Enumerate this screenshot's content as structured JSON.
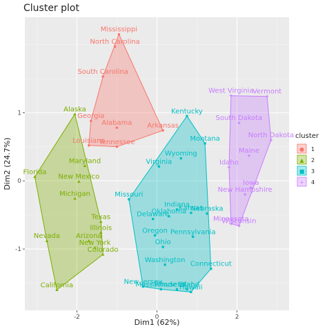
{
  "chart_data": {
    "type": "scatter",
    "title": "Cluster plot",
    "xlabel": "Dim1 (62%)",
    "ylabel": "Dim2 (24.7%)",
    "xlim": [
      -3.3,
      3.3
    ],
    "ylim": [
      -1.9,
      2.4
    ],
    "x_ticks": [
      -2,
      0,
      2
    ],
    "y_ticks": [
      -1,
      0,
      1
    ],
    "grid": true,
    "legend_position": "right",
    "legend": {
      "title": "cluster",
      "entries": [
        {
          "label": "1",
          "glyph": "●"
        },
        {
          "label": "2",
          "glyph": "▲"
        },
        {
          "label": "3",
          "glyph": "■"
        },
        {
          "label": "4",
          "glyph": "+"
        }
      ]
    },
    "series": [
      {
        "cluster": "1",
        "color": "#F8766D",
        "marker": "circle",
        "points": [
          {
            "label": "Mississippi",
            "x": -0.95,
            "y": 2.15
          },
          {
            "label": "North Carolina",
            "x": -1.05,
            "y": 1.97
          },
          {
            "label": "South Carolina",
            "x": -1.35,
            "y": 1.53
          },
          {
            "label": "Georgia",
            "x": -1.65,
            "y": 0.88
          },
          {
            "label": "Alabama",
            "x": -1.0,
            "y": 0.78
          },
          {
            "label": "Arkansas",
            "x": 0.15,
            "y": 0.74
          },
          {
            "label": "Louisiana",
            "x": -1.7,
            "y": 0.52
          },
          {
            "label": "Tennessee",
            "x": -1.0,
            "y": 0.5
          }
        ]
      },
      {
        "cluster": "2",
        "color": "#7CAE00",
        "marker": "triangle",
        "points": [
          {
            "label": "Alaska",
            "x": -2.05,
            "y": 0.98
          },
          {
            "label": "Maryland",
            "x": -1.8,
            "y": 0.22
          },
          {
            "label": "New Mexico",
            "x": -1.95,
            "y": -0.01
          },
          {
            "label": "Florida",
            "x": -3.05,
            "y": 0.06
          },
          {
            "label": "Michigan",
            "x": -2.05,
            "y": -0.26
          },
          {
            "label": "Texas",
            "x": -1.4,
            "y": -0.6
          },
          {
            "label": "Illinois",
            "x": -1.4,
            "y": -0.76
          },
          {
            "label": "Nevada",
            "x": -2.75,
            "y": -0.88
          },
          {
            "label": "Arizona",
            "x": -1.7,
            "y": -0.88
          },
          {
            "label": "New York",
            "x": -1.55,
            "y": -0.98
          },
          {
            "label": "Colorado",
            "x": -1.35,
            "y": -1.08
          },
          {
            "label": "California",
            "x": -2.5,
            "y": -1.6
          }
        ]
      },
      {
        "cluster": "3",
        "color": "#00BFC4",
        "marker": "square",
        "points": [
          {
            "label": "Kentucky",
            "x": 0.75,
            "y": 0.95
          },
          {
            "label": "Montana",
            "x": 1.2,
            "y": 0.55
          },
          {
            "label": "Wyoming",
            "x": 0.6,
            "y": 0.33
          },
          {
            "label": "Virginia",
            "x": 0.05,
            "y": 0.21
          },
          {
            "label": "Missouri",
            "x": -0.7,
            "y": -0.27
          },
          {
            "label": "Indiana",
            "x": 0.5,
            "y": -0.42
          },
          {
            "label": "Kansas",
            "x": 0.85,
            "y": -0.47
          },
          {
            "label": "Nebraska",
            "x": 1.25,
            "y": -0.48
          },
          {
            "label": "Oklahoma",
            "x": 0.3,
            "y": -0.52
          },
          {
            "label": "Delaware",
            "x": -0.1,
            "y": -0.56
          },
          {
            "label": "Oregon",
            "x": -0.05,
            "y": -0.8
          },
          {
            "label": "Pennsylvania",
            "x": 0.9,
            "y": -0.82
          },
          {
            "label": "Ohio",
            "x": 0.15,
            "y": -0.97
          },
          {
            "label": "Washington",
            "x": 0.2,
            "y": -1.23
          },
          {
            "label": "Connecticut",
            "x": 1.35,
            "y": -1.29
          },
          {
            "label": "New Jersey",
            "x": -0.35,
            "y": -1.55
          },
          {
            "label": "Massachusetts",
            "x": 0.1,
            "y": -1.59
          },
          {
            "label": "Rhode Island",
            "x": 0.5,
            "y": -1.59
          },
          {
            "label": "Utah",
            "x": 0.75,
            "y": -1.59
          },
          {
            "label": "Hawaii",
            "x": 0.85,
            "y": -1.63
          }
        ]
      },
      {
        "cluster": "4",
        "color": "#C77CFF",
        "marker": "plus",
        "points": [
          {
            "label": "West Virginia",
            "x": 1.85,
            "y": 1.25
          },
          {
            "label": "Vermont",
            "x": 2.75,
            "y": 1.24
          },
          {
            "label": "South Dakota",
            "x": 2.05,
            "y": 0.85
          },
          {
            "label": "North Dakota",
            "x": 2.85,
            "y": 0.6
          },
          {
            "label": "Maine",
            "x": 2.3,
            "y": 0.37
          },
          {
            "label": "Idaho",
            "x": 1.8,
            "y": 0.2
          },
          {
            "label": "Iowa",
            "x": 2.35,
            "y": -0.1
          },
          {
            "label": "New Hampshire",
            "x": 2.2,
            "y": -0.2
          },
          {
            "label": "Minnesota",
            "x": 1.85,
            "y": -0.63
          },
          {
            "label": "Wisconsin",
            "x": 2.05,
            "y": -0.66
          }
        ]
      }
    ]
  }
}
